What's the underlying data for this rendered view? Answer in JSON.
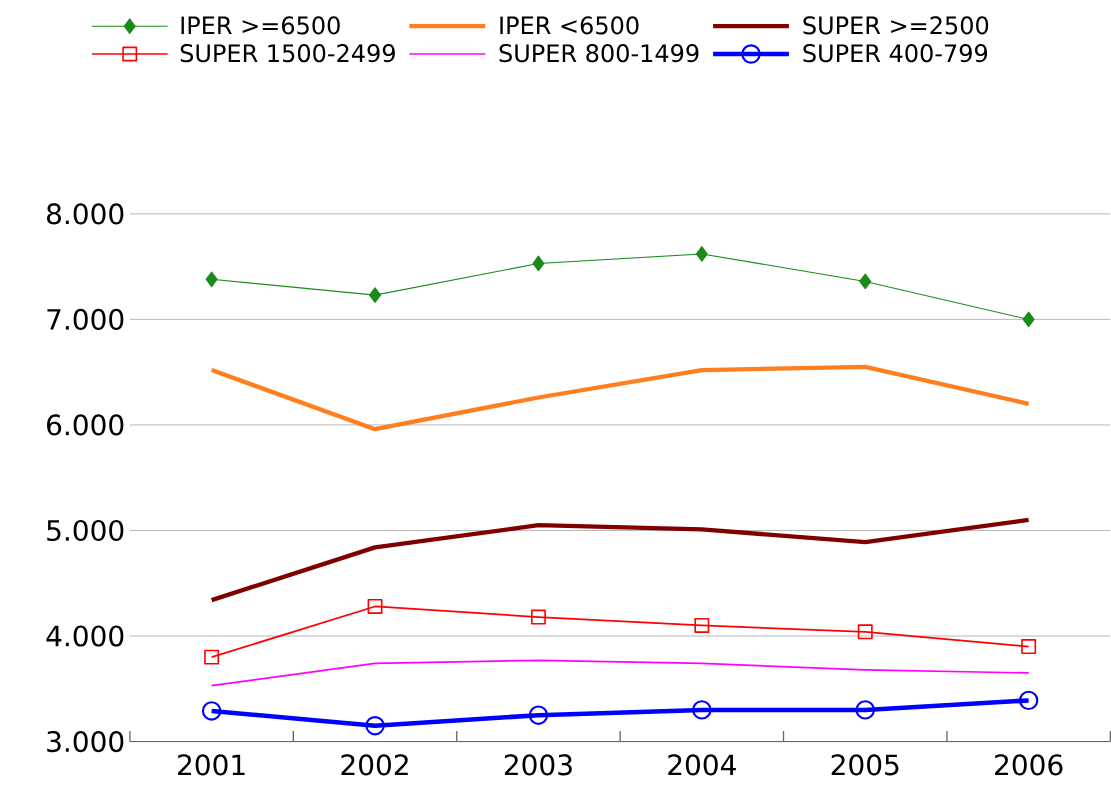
{
  "chart_data": {
    "type": "line",
    "categories": [
      "2001",
      "2002",
      "2003",
      "2004",
      "2005",
      "2006"
    ],
    "series": [
      {
        "name": "IPER >=6500",
        "color": "#1a8a1a",
        "marker": "diamond",
        "values": [
          7380,
          7230,
          7530,
          7620,
          7360,
          7000
        ]
      },
      {
        "name": "IPER <6500",
        "color": "#ff7f1e",
        "marker": "none",
        "values": [
          6520,
          5960,
          6260,
          6520,
          6550,
          6200
        ]
      },
      {
        "name": "SUPER >=2500",
        "color": "#800000",
        "marker": "none",
        "values": [
          4340,
          4840,
          5050,
          5010,
          4890,
          5100
        ]
      },
      {
        "name": "SUPER 1500-2499",
        "color": "#ff0000",
        "marker": "square",
        "values": [
          3800,
          4280,
          4180,
          4100,
          4040,
          3900
        ]
      },
      {
        "name": "SUPER 800-1499",
        "color": "#ff00ff",
        "marker": "none",
        "values": [
          3530,
          3740,
          3770,
          3740,
          3680,
          3650
        ]
      },
      {
        "name": "SUPER 400-799",
        "color": "#0000ff",
        "marker": "circle",
        "values": [
          3290,
          3150,
          3250,
          3300,
          3300,
          3390
        ]
      }
    ],
    "ylim": [
      3000,
      8000
    ],
    "yticks": [
      {
        "value": 3000,
        "label": "3.000"
      },
      {
        "value": 4000,
        "label": "4.000"
      },
      {
        "value": 5000,
        "label": "5.000"
      },
      {
        "value": 6000,
        "label": "6.000"
      },
      {
        "value": 7000,
        "label": "7.000"
      },
      {
        "value": 8000,
        "label": "8.000"
      }
    ],
    "grid": "y",
    "legend": "top"
  }
}
